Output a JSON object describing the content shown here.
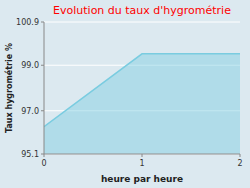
{
  "chart_data": {
    "type": "area",
    "title": "Evolution du taux d'hygrométrie",
    "x_label": "heure par heure",
    "y_label": "Taux hygrométrie %",
    "x": [
      0,
      1,
      2
    ],
    "values": [
      96.3,
      99.5,
      99.5
    ],
    "color": "#7acce0",
    "xlim": [
      0,
      2
    ],
    "ylim": [
      95.1,
      100.9
    ],
    "xticks": [
      0,
      1,
      2
    ],
    "yticks": [
      95.1,
      {
        "value": 97.0,
        "label": "97.0"
      },
      {
        "value": 99.0,
        "label": "99.0"
      },
      100.9
    ]
  }
}
